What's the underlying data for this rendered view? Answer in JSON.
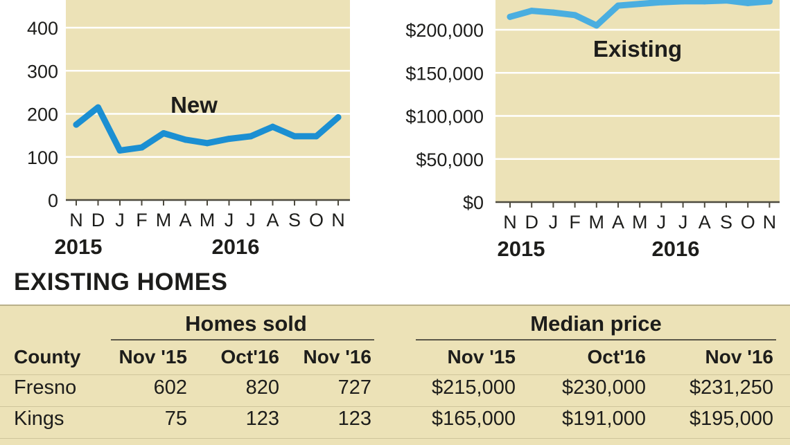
{
  "chart_data": [
    {
      "type": "line",
      "title": "",
      "xlabel": "",
      "ylabel": "",
      "ylim": [
        0,
        500
      ],
      "yticks": [
        "0",
        "100",
        "200",
        "300",
        "400"
      ],
      "ytick_values": [
        0,
        100,
        200,
        300,
        400
      ],
      "x_month_labels": [
        "N",
        "D",
        "J",
        "F",
        "M",
        "A",
        "M",
        "J",
        "J",
        "A",
        "S",
        "O",
        "N"
      ],
      "year_labels": [
        "2015",
        "2016"
      ],
      "grid": true,
      "series": [
        {
          "name": "New",
          "values": [
            175,
            215,
            115,
            122,
            155,
            140,
            132,
            142,
            148,
            170,
            148,
            148,
            192
          ]
        }
      ]
    },
    {
      "type": "line",
      "title": "",
      "xlabel": "",
      "ylabel": "",
      "ylim": [
        0,
        250000
      ],
      "yticks": [
        "$0",
        "$50,000",
        "$100,000",
        "$150,000",
        "$200,000"
      ],
      "ytick_values": [
        0,
        50000,
        100000,
        150000,
        200000
      ],
      "x_month_labels": [
        "N",
        "D",
        "J",
        "F",
        "M",
        "A",
        "M",
        "J",
        "J",
        "A",
        "S",
        "O",
        "N"
      ],
      "year_labels": [
        "2015",
        "2016"
      ],
      "grid": true,
      "series": [
        {
          "name": "Existing",
          "values": [
            215000,
            222000,
            220000,
            217000,
            205000,
            228000,
            230000,
            232000,
            233000,
            233000,
            234000,
            231000,
            233000
          ]
        }
      ]
    }
  ],
  "table": {
    "section_title": "EXISTING HOMES",
    "group_headers": [
      "Homes sold",
      "Median price"
    ],
    "columns": [
      "County",
      "Nov '15",
      "Oct'16",
      "Nov '16",
      "Nov '15",
      "Oct'16",
      "Nov '16"
    ],
    "rows": [
      [
        "Fresno",
        "602",
        "820",
        "727",
        "$215,000",
        "$230,000",
        "$231,250"
      ],
      [
        "Kings",
        "75",
        "123",
        "123",
        "$165,000",
        "$191,000",
        "$195,000"
      ]
    ]
  },
  "colors": {
    "plot_bg": "#ece2b7",
    "new_line": "#1b8fd2",
    "existing_line": "#4aaee0",
    "grid": "#ffffff",
    "table_bg": "#ece2b7"
  }
}
